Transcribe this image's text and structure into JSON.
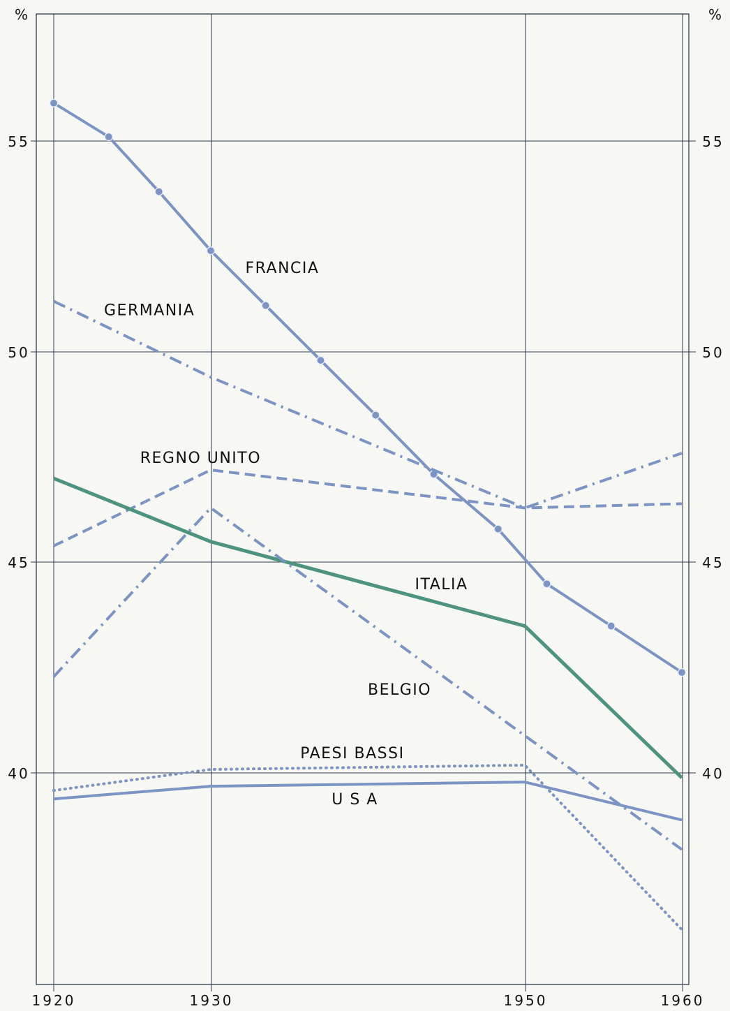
{
  "chart_data": {
    "type": "line",
    "title": "",
    "xlabel": "",
    "ylabel": "%",
    "ylim": [
      35,
      58
    ],
    "grid": true,
    "x_ticks": [
      "1920",
      "1930",
      "1950",
      "1960"
    ],
    "y_ticks": [
      "55",
      "50",
      "45",
      "40"
    ],
    "axis_unit_left": "%",
    "axis_unit_right": "%",
    "series": [
      {
        "name": "FRANCIA",
        "color": "#7c94c3",
        "style": "solid",
        "marker": "circle",
        "points": [
          [
            1920,
            55.9
          ],
          [
            1923.5,
            55.1
          ],
          [
            1926.7,
            53.8
          ],
          [
            1930,
            52.4
          ],
          [
            1933.5,
            51.1
          ],
          [
            1937,
            49.8
          ],
          [
            1940.5,
            48.5
          ],
          [
            1944.2,
            47.1
          ],
          [
            1948.3,
            45.8
          ],
          [
            1951.4,
            44.5
          ],
          [
            1955.5,
            43.5
          ],
          [
            1960,
            42.4
          ]
        ]
      },
      {
        "name": "GERMANIA",
        "color": "#7c94c3",
        "style": "dashdot",
        "marker": "",
        "points": [
          [
            1920,
            51.2
          ],
          [
            1930,
            49.4
          ],
          [
            1950,
            46.3
          ],
          [
            1960,
            47.6
          ]
        ]
      },
      {
        "name": "REGNO UNITO",
        "color": "#7c94c3",
        "style": "dashed",
        "marker": "",
        "points": [
          [
            1920,
            45.4
          ],
          [
            1930,
            47.2
          ],
          [
            1950,
            46.3
          ],
          [
            1960,
            46.4
          ]
        ]
      },
      {
        "name": "ITALIA",
        "color": "#4e9280",
        "style": "solid",
        "marker": "",
        "points": [
          [
            1920,
            47.0
          ],
          [
            1930,
            45.5
          ],
          [
            1950,
            43.5
          ],
          [
            1960,
            39.9
          ]
        ]
      },
      {
        "name": "BELGIO",
        "color": "#7c94c3",
        "style": "dashdot",
        "marker": "",
        "points": [
          [
            1920,
            42.3
          ],
          [
            1930,
            46.3
          ],
          [
            1950,
            40.9
          ],
          [
            1960,
            38.2
          ]
        ]
      },
      {
        "name": "PAESI BASSI",
        "color": "#7c94c3",
        "style": "dotted",
        "marker": "",
        "points": [
          [
            1920,
            39.6
          ],
          [
            1930,
            40.1
          ],
          [
            1950,
            40.2
          ],
          [
            1960,
            36.3
          ]
        ]
      },
      {
        "name": "U S A",
        "color": "#7c94c3",
        "style": "solid",
        "marker": "",
        "points": [
          [
            1920,
            39.4
          ],
          [
            1930,
            39.7
          ],
          [
            1950,
            39.8
          ],
          [
            1960,
            38.9
          ]
        ]
      }
    ],
    "labels": [
      {
        "text": "FRANCIA",
        "x": 1932.2,
        "y": 52.0
      },
      {
        "text": "GERMANIA",
        "x": 1923.2,
        "y": 51.0
      },
      {
        "text": "REGNO UNITO",
        "x": 1925.5,
        "y": 47.5
      },
      {
        "text": "ITALIA",
        "x": 1943.0,
        "y": 44.5
      },
      {
        "text": "BELGIO",
        "x": 1940.0,
        "y": 42.0
      },
      {
        "text": "PAESI BASSI",
        "x": 1935.7,
        "y": 40.5
      },
      {
        "text": "U S A",
        "x": 1937.7,
        "y": 39.4
      }
    ]
  }
}
